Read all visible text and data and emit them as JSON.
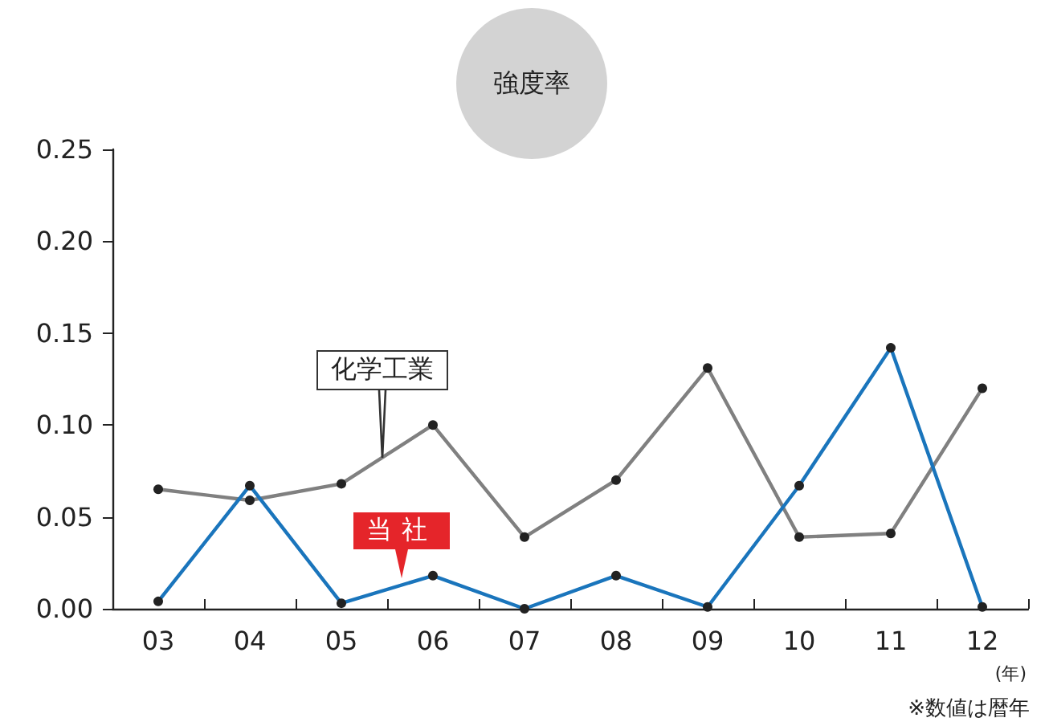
{
  "chart_data": {
    "type": "line",
    "title": "強度率",
    "xlabel": "(年)",
    "annotations": [
      "※数値は暦年"
    ],
    "categories": [
      "03",
      "04",
      "05",
      "06",
      "07",
      "08",
      "09",
      "10",
      "11",
      "12"
    ],
    "series": [
      {
        "name": "化学工業",
        "color": "#808080",
        "values": [
          0.065,
          0.059,
          0.068,
          0.1,
          0.039,
          0.07,
          0.131,
          0.039,
          0.041,
          0.12
        ]
      },
      {
        "name": "当社",
        "color": "#1a75bc",
        "values": [
          0.004,
          0.067,
          0.003,
          0.018,
          0,
          0.018,
          0.001,
          0.067,
          0.142,
          0.001
        ]
      }
    ],
    "ylim": [
      0,
      0.25
    ],
    "yticks": [
      {
        "value": 0,
        "label": "0.00"
      },
      {
        "value": 0.05,
        "label": "0.05"
      },
      {
        "value": 0.1,
        "label": "0.10"
      },
      {
        "value": 0.15,
        "label": "0.15"
      },
      {
        "value": 0.2,
        "label": "0.20"
      },
      {
        "value": 0.25,
        "label": "0.25"
      }
    ],
    "marker": "circle",
    "line_style": "solid",
    "grid": false,
    "legend": false
  }
}
